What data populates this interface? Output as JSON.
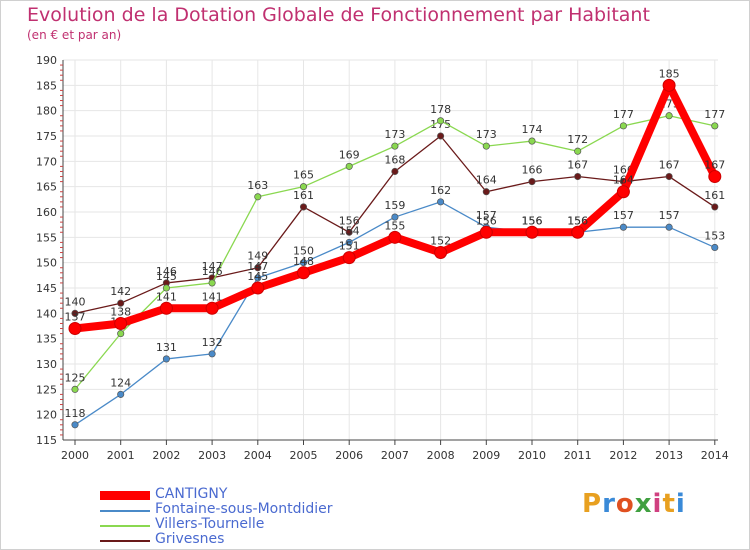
{
  "header": {
    "title": "Evolution de la Dotation Globale de Fonctionnement par Habitant",
    "subtitle": "(en € et par an)"
  },
  "logo": {
    "text": "Proxiti",
    "colors": [
      "#e8a020",
      "#3a8ad8",
      "#e05020",
      "#40a040",
      "#d04080",
      "#e8a020",
      "#3a8ad8"
    ]
  },
  "chart_data": {
    "type": "line",
    "title": "Evolution de la Dotation Globale de Fonctionnement par Habitant",
    "ylabel": "(en € et par an)",
    "xlabel": "",
    "ylim": [
      115,
      190
    ],
    "yticks": [
      115,
      120,
      125,
      130,
      135,
      140,
      145,
      150,
      155,
      160,
      165,
      170,
      175,
      180,
      185,
      190
    ],
    "x": [
      "2000",
      "2001",
      "2002",
      "2003",
      "2004",
      "2005",
      "2006",
      "2007",
      "2008",
      "2009",
      "2010",
      "2011",
      "2012",
      "2013",
      "2014"
    ],
    "grid": true,
    "legend_position": "bottom-left",
    "series": [
      {
        "name": "Grivesnes",
        "color": "#6a1a1a",
        "values": [
          140,
          142,
          146,
          147,
          149,
          161,
          156,
          168,
          175,
          164,
          166,
          167,
          166,
          167,
          161
        ]
      },
      {
        "name": "Villers-Tournelle",
        "color": "#8ad850",
        "values": [
          125,
          136,
          145,
          146,
          163,
          165,
          169,
          173,
          178,
          173,
          174,
          172,
          177,
          179,
          177
        ]
      },
      {
        "name": "Fontaine-sous-Montdidier",
        "color": "#4a8ac8",
        "values": [
          118,
          124,
          131,
          132,
          147,
          150,
          154,
          159,
          162,
          157,
          156,
          156,
          157,
          157,
          153
        ]
      },
      {
        "name": "CANTIGNY",
        "color": "#ff0000",
        "values": [
          137,
          138,
          141,
          141,
          145,
          148,
          151,
          155,
          152,
          156,
          156,
          156,
          164,
          185,
          167
        ]
      }
    ]
  }
}
